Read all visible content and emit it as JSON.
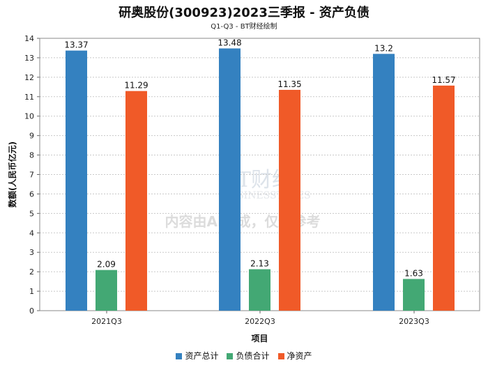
{
  "title": "研奥股份(300923)2023三季报 - 资产负债",
  "subtitle": "Q1-Q3 - BT财经绘制",
  "watermark": {
    "logo": "BT财经",
    "logo_sub": "BUSINESSTIMES",
    "notice": "内容由AI生成，仅供参考"
  },
  "chart_data": {
    "type": "bar",
    "title": "研奥股份(300923)2023三季报 - 资产负债",
    "xlabel": "项目",
    "ylabel": "数额(人民币亿元)",
    "categories": [
      "2021Q3",
      "2022Q3",
      "2023Q3"
    ],
    "ylim": [
      0,
      14
    ],
    "yticks": [
      0,
      1,
      2,
      3,
      4,
      5,
      6,
      7,
      8,
      9,
      10,
      11,
      12,
      13,
      14
    ],
    "grid": true,
    "legend_position": "bottom",
    "series": [
      {
        "name": "资产总计",
        "color": "#3481c0",
        "values": [
          13.37,
          13.48,
          13.2
        ]
      },
      {
        "name": "负债合计",
        "color": "#43a874",
        "values": [
          2.09,
          2.13,
          1.63
        ]
      },
      {
        "name": "净资产",
        "color": "#f05a28",
        "values": [
          11.29,
          11.35,
          11.57
        ]
      }
    ]
  }
}
